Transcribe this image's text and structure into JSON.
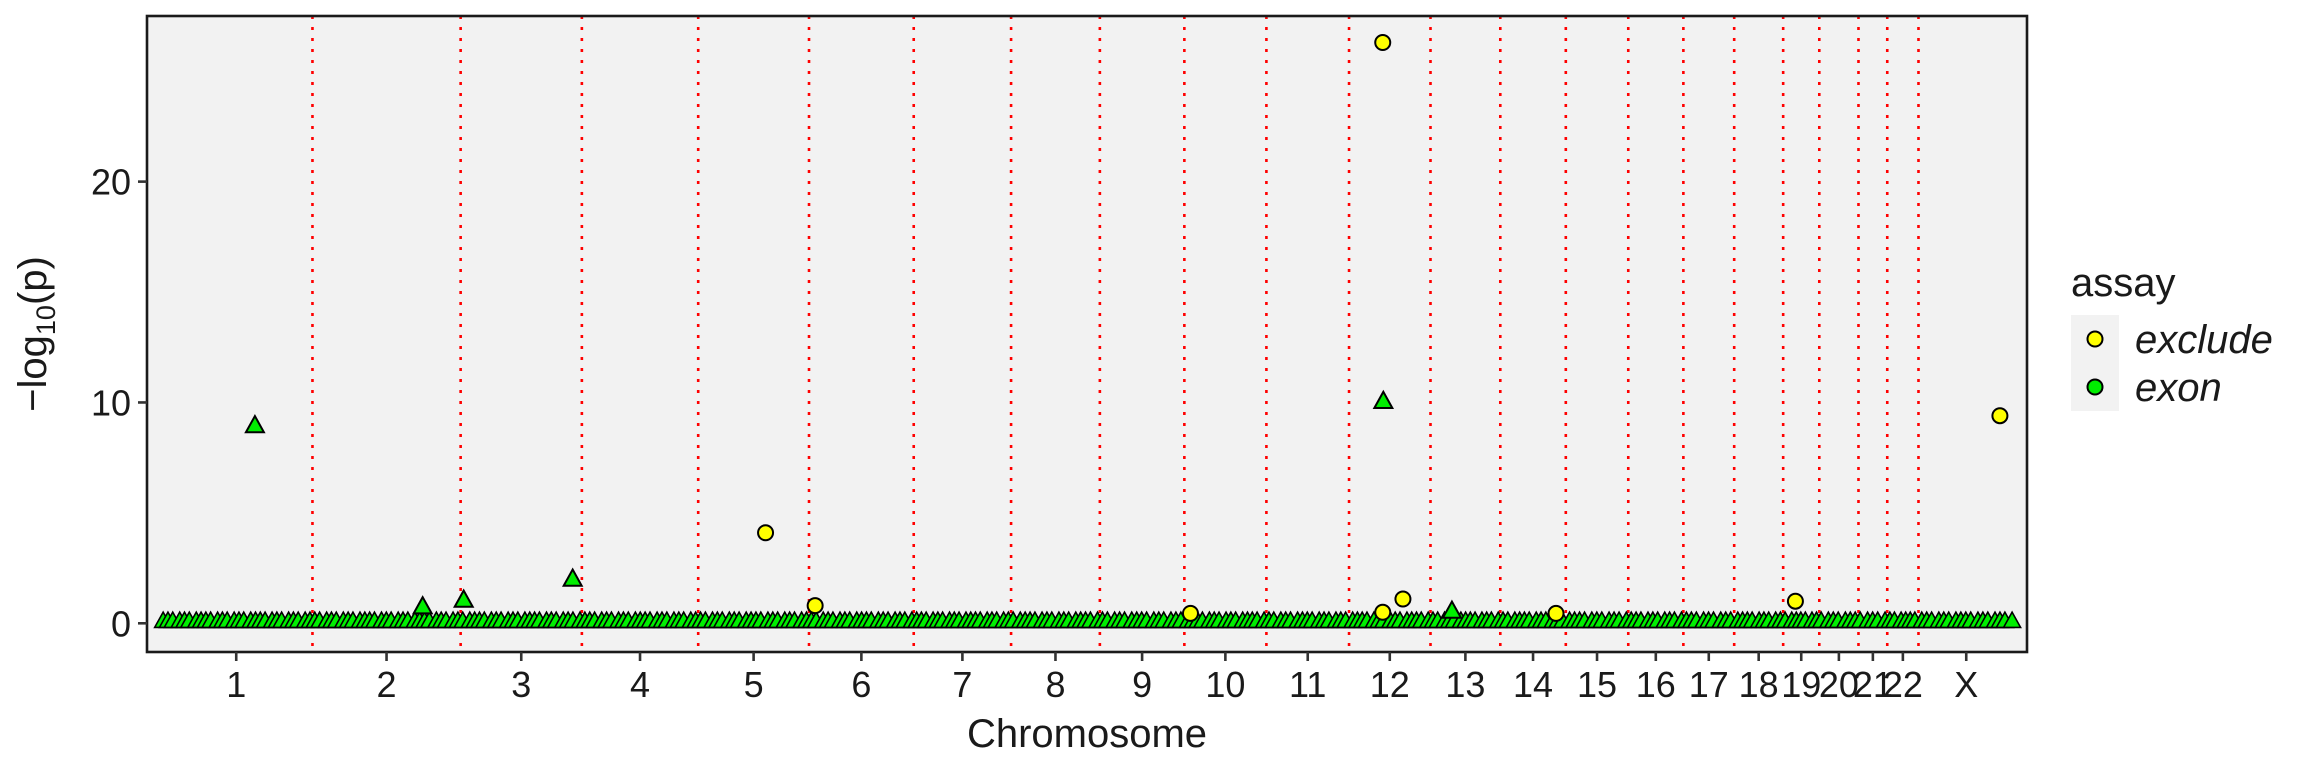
{
  "chart_data": {
    "type": "scatter",
    "xlabel": "Chromosome",
    "ylabel_main": "−log",
    "ylabel_sub": "10",
    "ylabel_end": "(p)",
    "ylim": [
      -1.3,
      27.5
    ],
    "yticks": [
      0,
      10,
      20
    ],
    "grid": false,
    "legend_position": "right",
    "legend_title": "assay",
    "chromosomes": [
      {
        "label": "1",
        "len": 249
      },
      {
        "label": "2",
        "len": 242
      },
      {
        "label": "3",
        "len": 198
      },
      {
        "label": "4",
        "len": 190
      },
      {
        "label": "5",
        "len": 181
      },
      {
        "label": "6",
        "len": 171
      },
      {
        "label": "7",
        "len": 159
      },
      {
        "label": "8",
        "len": 145
      },
      {
        "label": "9",
        "len": 138
      },
      {
        "label": "10",
        "len": 134
      },
      {
        "label": "11",
        "len": 135
      },
      {
        "label": "12",
        "len": 133
      },
      {
        "label": "13",
        "len": 114
      },
      {
        "label": "14",
        "len": 107
      },
      {
        "label": "15",
        "len": 102
      },
      {
        "label": "16",
        "len": 90
      },
      {
        "label": "17",
        "len": 83
      },
      {
        "label": "18",
        "len": 80
      },
      {
        "label": "19",
        "len": 59
      },
      {
        "label": "20",
        "len": 64
      },
      {
        "label": "21",
        "len": 47
      },
      {
        "label": "22",
        "len": 51
      },
      {
        "label": "X",
        "len": 156
      }
    ],
    "series": [
      {
        "name": "exclude",
        "color": "#ffff00",
        "shape": "circle",
        "points": [
          {
            "chr": "5",
            "pos": 110,
            "p": 4.1
          },
          {
            "chr": "6",
            "pos": 10,
            "p": 0.8
          },
          {
            "chr": "10",
            "pos": 10,
            "p": 0.45
          },
          {
            "chr": "12",
            "pos": 55,
            "p": 26.3
          },
          {
            "chr": "12",
            "pos": 55,
            "p": 0.5
          },
          {
            "chr": "12",
            "pos": 88,
            "p": 1.1
          },
          {
            "chr": "14",
            "pos": 91,
            "p": 0.45
          },
          {
            "chr": "19",
            "pos": 20,
            "p": 1.0
          },
          {
            "chr": "X",
            "pos": 133,
            "p": 9.4
          }
        ]
      },
      {
        "name": "exon",
        "color": "#00ee00",
        "shape": "triangle",
        "points": [
          {
            "chr": "1",
            "pos": 155,
            "p": 8.9
          },
          {
            "chr": "2",
            "pos": 180,
            "p": 0.7
          },
          {
            "chr": "3",
            "pos": 5,
            "p": 1.0
          },
          {
            "chr": "3",
            "pos": 183,
            "p": 1.95
          },
          {
            "chr": "12",
            "pos": 56,
            "p": 10.0
          },
          {
            "chr": "13",
            "pos": 35,
            "p": 0.5
          }
        ]
      }
    ]
  }
}
